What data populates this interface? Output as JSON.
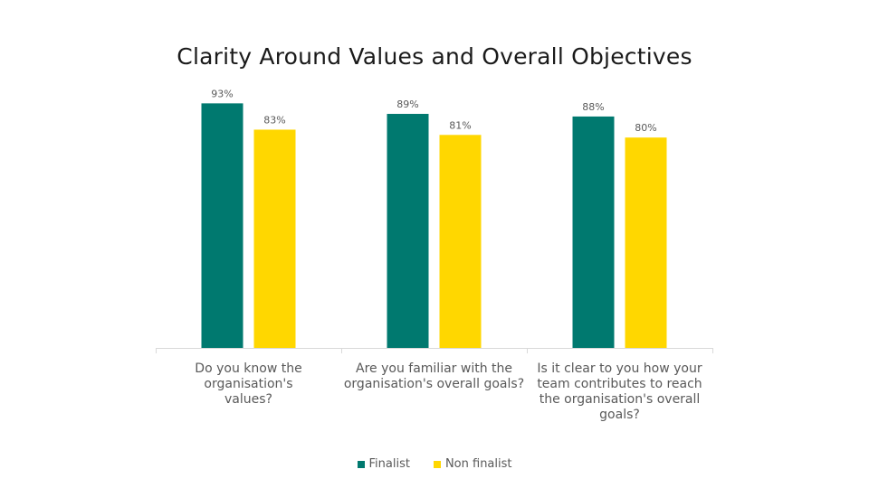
{
  "chart_data": {
    "type": "bar",
    "title": "Clarity Around Values and Overall Objectives",
    "xlabel": "",
    "ylabel": "",
    "ylim": [
      0,
      100
    ],
    "grid": false,
    "legend_position": "bottom",
    "categories": [
      "Do you know the organisation's values?",
      "Are you familiar with the organisation's overall goals?",
      "Is it clear to you how your team contributes to reach the organisation's overall goals?"
    ],
    "series": [
      {
        "name": "Finalist",
        "color": "#00796F",
        "values": [
          93,
          89,
          88
        ],
        "labels": [
          "93%",
          "89%",
          "88%"
        ]
      },
      {
        "name": "Non finalist",
        "color": "#FFD700",
        "values": [
          83,
          81,
          80
        ],
        "labels": [
          "83%",
          "81%",
          "80%"
        ]
      }
    ]
  }
}
